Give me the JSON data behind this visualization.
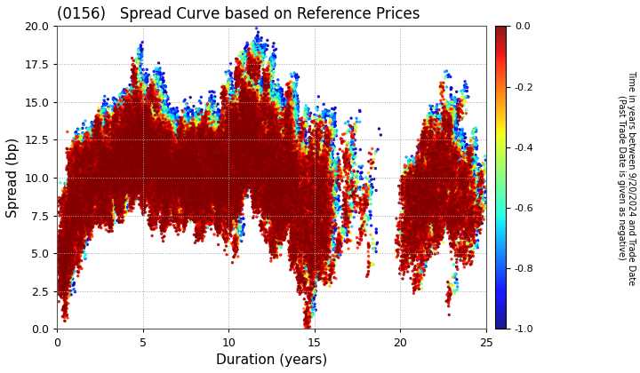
{
  "title": "(0156)   Spread Curve based on Reference Prices",
  "xlabel": "Duration (years)",
  "ylabel": "Spread (bp)",
  "colorbar_label_line1": "Time in years between 9/20/2024 and Trade Date",
  "colorbar_label_line2": "(Past Trade Date is given as negative)",
  "xlim": [
    0,
    25
  ],
  "ylim": [
    0.0,
    20.0
  ],
  "yticks": [
    0.0,
    2.5,
    5.0,
    7.5,
    10.0,
    12.5,
    15.0,
    17.5,
    20.0
  ],
  "xticks": [
    0,
    5,
    10,
    15,
    20,
    25
  ],
  "cmap": "jet",
  "clim": [
    -1.0,
    0.0
  ],
  "cticks": [
    0.0,
    -0.2,
    -0.4,
    -0.6,
    -0.8,
    -1.0
  ],
  "marker_size": 6,
  "background_color": "#ffffff",
  "grid_color": "#aaaaaa",
  "grid_style": "dotted"
}
